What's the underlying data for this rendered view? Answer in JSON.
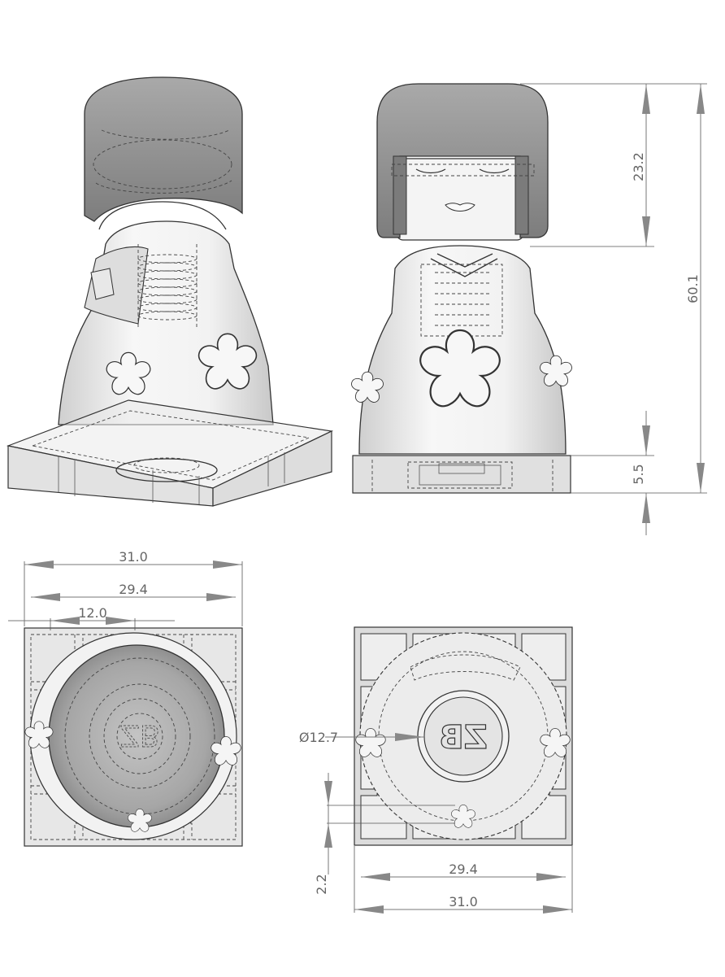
{
  "views": {
    "iso": "isometric",
    "front": "front",
    "top": "top",
    "bottom": "bottom"
  },
  "dimensions": {
    "head_height": "23.2",
    "total_height": "60.1",
    "base_height": "5.5",
    "top_width_outer": "31.0",
    "top_width_inner": "29.4",
    "top_inner_offset": "12.0",
    "bottom_diameter": "Ø12.7",
    "bottom_gap": "2.2",
    "bottom_width_inner": "29.4",
    "bottom_width_outer": "31.0"
  },
  "logo_text": "ZB",
  "colors": {
    "hair": "#8e8e8e",
    "body": "#eeeeee",
    "base": "#dcdcdc",
    "dim": "#777777"
  }
}
